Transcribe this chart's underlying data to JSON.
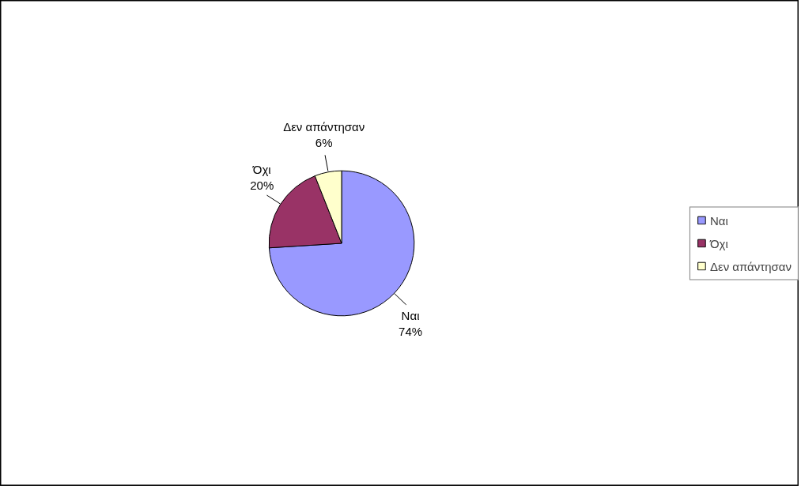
{
  "chart_data": {
    "type": "pie",
    "categories": [
      "Ναι",
      "Όχι",
      "Δεν απάντησαν"
    ],
    "values": [
      74,
      20,
      6
    ],
    "colors": [
      "#9999ff",
      "#993366",
      "#ffffcc"
    ],
    "value_labels": [
      "74%",
      "20%",
      "6%"
    ],
    "legend": "right"
  }
}
